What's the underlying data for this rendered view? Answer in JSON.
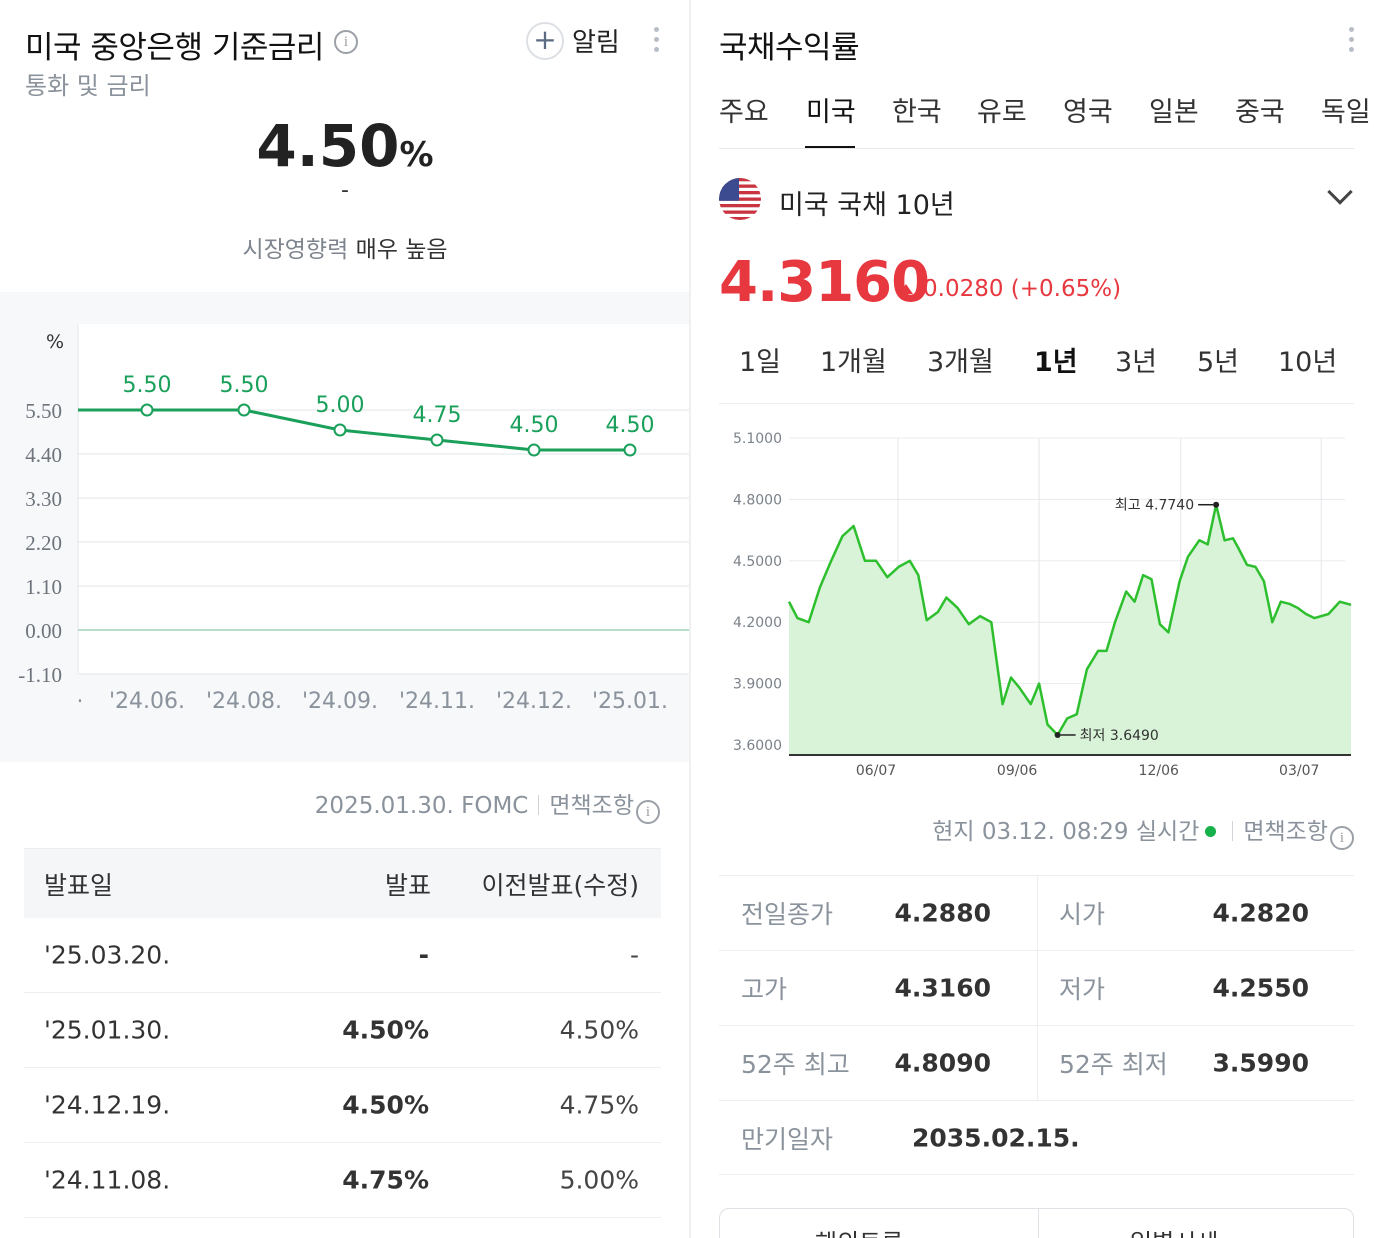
{
  "left": {
    "title": "미국 중앙은행 기준금리",
    "subtitle": "통화 및 금리",
    "alarm_label": "알림",
    "rate_value": "4.50",
    "rate_unit": "%",
    "rate_change": "-",
    "impact_label": "시장영향력",
    "impact_value": "매우 높음",
    "chart_data": {
      "type": "line",
      "unit_label": "%",
      "categories": [
        "'24.06.",
        "'24.08.",
        "'24.09.",
        "'24.11.",
        "'24.12.",
        "'25.01."
      ],
      "values": [
        5.5,
        5.5,
        5.0,
        4.75,
        4.5,
        4.5
      ],
      "value_labels": [
        "5.50",
        "5.50",
        "5.00",
        "4.75",
        "4.50",
        "4.50"
      ],
      "y_ticks": [
        "5.50",
        "4.40",
        "3.30",
        "2.20",
        "1.10",
        "0.00",
        "-1.10"
      ],
      "y_tick_values": [
        5.5,
        4.4,
        3.3,
        2.2,
        1.1,
        0.0,
        -1.1
      ],
      "ylim": [
        -1.1,
        6.6
      ],
      "color": "#1aa05a",
      "first_tick_stub": "."
    },
    "fomc_date": "2025.01.30. FOMC",
    "disclaimer": "면책조항",
    "table": {
      "headers": [
        "발표일",
        "발표",
        "이전발표(수정)"
      ],
      "rows": [
        {
          "date": "'25.03.20.",
          "actual": "-",
          "prev": "-"
        },
        {
          "date": "'25.01.30.",
          "actual": "4.50%",
          "prev": "4.50%"
        },
        {
          "date": "'24.12.19.",
          "actual": "4.50%",
          "prev": "4.75%"
        },
        {
          "date": "'24.11.08.",
          "actual": "4.75%",
          "prev": "5.00%"
        }
      ]
    }
  },
  "right": {
    "title": "국채수익률",
    "tabs": [
      "주요",
      "미국",
      "한국",
      "유로",
      "영국",
      "일본",
      "중국",
      "독일"
    ],
    "active_tab": "미국",
    "bond_name": "미국 국채 10년",
    "price": "4.3160",
    "change": "0.0280 (+0.65%)",
    "price_color": "#e7373f",
    "periods": [
      "1일",
      "1개월",
      "3개월",
      "1년",
      "3년",
      "5년",
      "10년"
    ],
    "active_period": "1년",
    "chart_data": {
      "type": "area",
      "y_ticks": [
        "5.1000",
        "4.8000",
        "4.5000",
        "4.2000",
        "3.9000",
        "3.6000"
      ],
      "y_tick_values": [
        5.1,
        4.8,
        4.5,
        4.2,
        3.9,
        3.6
      ],
      "ylim": [
        3.6,
        5.1
      ],
      "x_ticks": [
        "06/07",
        "09/06",
        "12/06",
        "03/07"
      ],
      "x_tick_positions": [
        0.194,
        0.445,
        0.697,
        0.947
      ],
      "x": [
        0,
        0.015,
        0.035,
        0.055,
        0.075,
        0.095,
        0.115,
        0.135,
        0.155,
        0.175,
        0.195,
        0.215,
        0.23,
        0.245,
        0.265,
        0.28,
        0.3,
        0.32,
        0.34,
        0.36,
        0.38,
        0.395,
        0.41,
        0.43,
        0.445,
        0.46,
        0.478,
        0.495,
        0.512,
        0.53,
        0.55,
        0.565,
        0.58,
        0.6,
        0.615,
        0.63,
        0.645,
        0.66,
        0.675,
        0.695,
        0.71,
        0.73,
        0.745,
        0.76,
        0.775,
        0.79,
        0.8,
        0.815,
        0.83,
        0.845,
        0.86,
        0.875,
        0.89,
        0.905,
        0.92,
        0.935,
        0.96,
        0.98,
        1.0
      ],
      "values": [
        4.3,
        4.22,
        4.2,
        4.37,
        4.5,
        4.62,
        4.67,
        4.5,
        4.5,
        4.42,
        4.47,
        4.5,
        4.43,
        4.21,
        4.25,
        4.32,
        4.27,
        4.19,
        4.23,
        4.2,
        3.8,
        3.93,
        3.88,
        3.8,
        3.9,
        3.7,
        3.649,
        3.73,
        3.75,
        3.97,
        4.06,
        4.06,
        4.2,
        4.35,
        4.3,
        4.43,
        4.41,
        4.19,
        4.15,
        4.4,
        4.52,
        4.6,
        4.58,
        4.774,
        4.6,
        4.61,
        4.56,
        4.48,
        4.47,
        4.4,
        4.2,
        4.3,
        4.29,
        4.27,
        4.24,
        4.22,
        4.24,
        4.3,
        4.285
      ],
      "high_label": "최고 4.7740",
      "low_label": "최저 3.6490",
      "high": 4.774,
      "low": 3.649,
      "line_color": "#2dbf2d",
      "fill_color": "#d8f3d8"
    },
    "realtime": "현지 03.12. 08:29 실시간",
    "disclaimer": "면책조항",
    "stats": [
      {
        "k1": "전일종가",
        "v1": "4.2880",
        "k2": "시가",
        "v2": "4.2820"
      },
      {
        "k1": "고가",
        "v1": "4.3160",
        "k2": "저가",
        "v2": "4.2550"
      },
      {
        "k1": "52주 최고",
        "v1": "4.8090",
        "k2": "52주 최저",
        "v2": "3.5990"
      },
      {
        "k1": "만기일자",
        "v1": "2035.02.15.",
        "k2": "",
        "v2": ""
      }
    ],
    "bottom_buttons": [
      "해외토론",
      "일별시세"
    ]
  }
}
